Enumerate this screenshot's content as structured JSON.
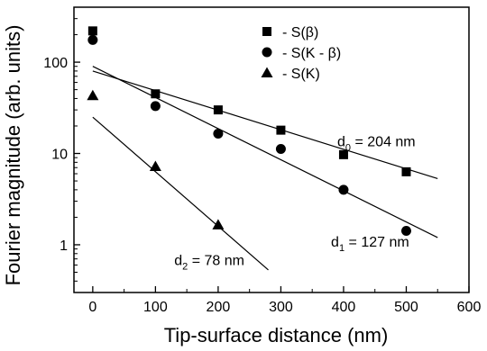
{
  "chart_data": {
    "type": "scatter",
    "xlabel": "Tip-surface distance (nm)",
    "ylabel": "Fourier magnitude (arb. units)",
    "xlim": [
      -30,
      600
    ],
    "ylim": [
      0.3,
      400
    ],
    "y_scale": "log",
    "x_ticks": [
      0,
      100,
      200,
      300,
      400,
      500,
      600
    ],
    "y_ticks": [
      1,
      10,
      100
    ],
    "legend_position": "top-center",
    "series": [
      {
        "name": "S(β)",
        "marker": "square",
        "x": [
          0,
          100,
          200,
          300,
          400,
          500
        ],
        "y": [
          220,
          45,
          30,
          18,
          9.7,
          6.3
        ],
        "fit": {
          "x": [
            0,
            550
          ],
          "y": [
            80,
            5.3
          ]
        }
      },
      {
        "name": "S(K - β)",
        "marker": "circle",
        "x": [
          0,
          100,
          200,
          300,
          400,
          500
        ],
        "y": [
          175,
          33,
          16.5,
          11.2,
          4.0,
          1.42
        ],
        "fit": {
          "x": [
            0,
            550
          ],
          "y": [
            90,
            1.2
          ]
        }
      },
      {
        "name": "S(K)",
        "marker": "triangle",
        "x": [
          0,
          100,
          200
        ],
        "y": [
          43,
          7.2,
          1.65
        ],
        "fit": {
          "x": [
            0,
            280
          ],
          "y": [
            25,
            0.53
          ]
        }
      }
    ],
    "annotations": [
      {
        "base": "d",
        "sub": "0",
        "rest": " = 204 nm",
        "x": 390,
        "y": 12
      },
      {
        "base": "d",
        "sub": "1",
        "rest": " = 127 nm",
        "x": 380,
        "y": 0.95
      },
      {
        "base": "d",
        "sub": "2",
        "rest": " = 78 nm",
        "x": 130,
        "y": 0.6
      }
    ]
  }
}
